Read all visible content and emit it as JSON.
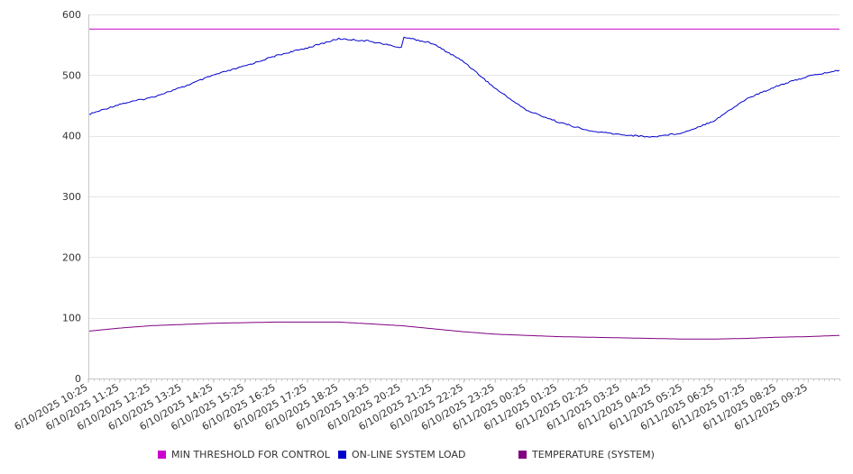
{
  "chart_data": {
    "type": "line",
    "title": "",
    "xlabel": "",
    "ylabel": "",
    "ylim": [
      0,
      600
    ],
    "yticks": [
      0,
      100,
      200,
      300,
      400,
      500,
      600
    ],
    "x_tick_labels": [
      "6/10/2025 10:25",
      "6/10/2025 11:25",
      "6/10/2025 12:25",
      "6/10/2025 13:25",
      "6/10/2025 14:25",
      "6/10/2025 15:25",
      "6/10/2025 16:25",
      "6/10/2025 17:25",
      "6/10/2025 18:25",
      "6/10/2025 19:25",
      "6/10/2025 20:25",
      "6/10/2025 21:25",
      "6/10/2025 22:25",
      "6/10/2025 23:25",
      "6/11/2025 00:25",
      "6/11/2025 01:25",
      "6/11/2025 02:25",
      "6/11/2025 03:25",
      "6/11/2025 04:25",
      "6/11/2025 05:25",
      "6/11/2025 06:25",
      "6/11/2025 07:25",
      "6/11/2025 08:25",
      "6/11/2025 09:25"
    ],
    "x_range": [
      "6/10/2025 10:25",
      "6/11/2025 10:25"
    ],
    "grid": "horizontal",
    "legend_position": "bottom",
    "series": [
      {
        "name": "MIN THRESHOLD FOR CONTROL",
        "color": "#cc00cc",
        "x": [
          "6/10/2025 10:25",
          "6/11/2025 10:25"
        ],
        "values": [
          576,
          576
        ]
      },
      {
        "name": "ON-LINE SYSTEM LOAD",
        "color": "#0000cc",
        "x": [
          "6/10/2025 10:25",
          "6/10/2025 11:25",
          "6/10/2025 12:25",
          "6/10/2025 13:25",
          "6/10/2025 14:25",
          "6/10/2025 15:25",
          "6/10/2025 16:25",
          "6/10/2025 17:25",
          "6/10/2025 18:25",
          "6/10/2025 19:25",
          "6/10/2025 20:25",
          "6/10/2025 20:30",
          "6/10/2025 21:25",
          "6/10/2025 22:25",
          "6/10/2025 23:25",
          "6/11/2025 00:25",
          "6/11/2025 01:25",
          "6/11/2025 02:25",
          "6/11/2025 03:25",
          "6/11/2025 04:25",
          "6/11/2025 05:25",
          "6/11/2025 06:25",
          "6/11/2025 07:25",
          "6/11/2025 08:25",
          "6/11/2025 09:25",
          "6/11/2025 10:25"
        ],
        "values": [
          435,
          452,
          463,
          480,
          500,
          515,
          532,
          545,
          560,
          556,
          545,
          563,
          552,
          522,
          478,
          442,
          423,
          408,
          402,
          398,
          405,
          425,
          460,
          482,
          498,
          508
        ]
      },
      {
        "name": "TEMPERATURE (SYSTEM)",
        "color": "#800080",
        "x": [
          "6/10/2025 10:25",
          "6/10/2025 11:25",
          "6/10/2025 12:25",
          "6/10/2025 13:25",
          "6/10/2025 14:25",
          "6/10/2025 15:25",
          "6/10/2025 16:25",
          "6/10/2025 17:25",
          "6/10/2025 18:25",
          "6/10/2025 19:25",
          "6/10/2025 20:25",
          "6/10/2025 21:25",
          "6/10/2025 22:25",
          "6/10/2025 23:25",
          "6/11/2025 00:25",
          "6/11/2025 01:25",
          "6/11/2025 02:25",
          "6/11/2025 03:25",
          "6/11/2025 04:25",
          "6/11/2025 05:25",
          "6/11/2025 06:25",
          "6/11/2025 07:25",
          "6/11/2025 08:25",
          "6/11/2025 09:25",
          "6/11/2025 10:25"
        ],
        "values": [
          78,
          83,
          87,
          89,
          91,
          92,
          93,
          93,
          93,
          90,
          87,
          82,
          77,
          73,
          71,
          69,
          68,
          67,
          66,
          65,
          65,
          66,
          68,
          69,
          71
        ]
      }
    ]
  }
}
